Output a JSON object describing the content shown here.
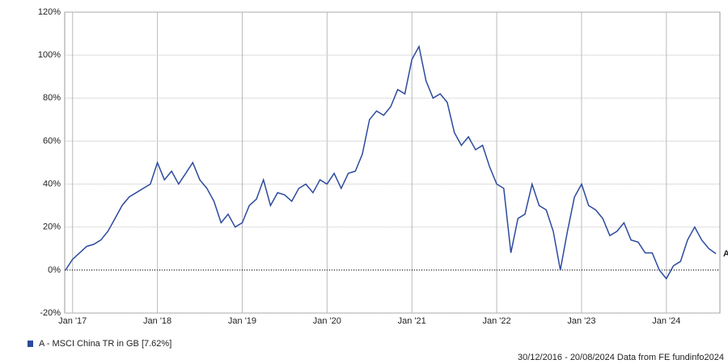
{
  "chart_data": {
    "type": "line",
    "x": [
      "2016-12",
      "2017-01",
      "2017-02",
      "2017-03",
      "2017-04",
      "2017-05",
      "2017-06",
      "2017-07",
      "2017-08",
      "2017-09",
      "2017-10",
      "2017-11",
      "2017-12",
      "2018-01",
      "2018-02",
      "2018-03",
      "2018-04",
      "2018-05",
      "2018-06",
      "2018-07",
      "2018-08",
      "2018-09",
      "2018-10",
      "2018-11",
      "2018-12",
      "2019-01",
      "2019-02",
      "2019-03",
      "2019-04",
      "2019-05",
      "2019-06",
      "2019-07",
      "2019-08",
      "2019-09",
      "2019-10",
      "2019-11",
      "2019-12",
      "2020-01",
      "2020-02",
      "2020-03",
      "2020-04",
      "2020-05",
      "2020-06",
      "2020-07",
      "2020-08",
      "2020-09",
      "2020-10",
      "2020-11",
      "2020-12",
      "2021-01",
      "2021-02",
      "2021-03",
      "2021-04",
      "2021-05",
      "2021-06",
      "2021-07",
      "2021-08",
      "2021-09",
      "2021-10",
      "2021-11",
      "2021-12",
      "2022-01",
      "2022-02",
      "2022-03",
      "2022-04",
      "2022-05",
      "2022-06",
      "2022-07",
      "2022-08",
      "2022-09",
      "2022-10",
      "2022-11",
      "2022-12",
      "2023-01",
      "2023-02",
      "2023-03",
      "2023-04",
      "2023-05",
      "2023-06",
      "2023-07",
      "2023-08",
      "2023-09",
      "2023-10",
      "2023-11",
      "2023-12",
      "2024-01",
      "2024-02",
      "2024-03",
      "2024-04",
      "2024-05",
      "2024-06",
      "2024-07",
      "2024-08"
    ],
    "series": [
      {
        "name": "A - MSCI China TR in GB [7.62%]",
        "color": "#2c4a9e",
        "values": [
          0,
          5,
          8,
          11,
          12,
          14,
          18,
          24,
          30,
          34,
          36,
          38,
          40,
          50,
          42,
          46,
          40,
          45,
          50,
          42,
          38,
          32,
          22,
          26,
          20,
          22,
          30,
          33,
          42,
          30,
          36,
          35,
          32,
          38,
          40,
          36,
          42,
          40,
          45,
          38,
          45,
          46,
          54,
          70,
          74,
          72,
          76,
          84,
          82,
          98,
          104,
          88,
          80,
          82,
          78,
          64,
          58,
          62,
          56,
          58,
          48,
          40,
          38,
          8,
          24,
          26,
          40,
          30,
          28,
          18,
          0,
          18,
          34,
          40,
          30,
          28,
          24,
          16,
          18,
          22,
          14,
          13,
          8,
          8,
          0,
          -4,
          2,
          4,
          14,
          20,
          14,
          10,
          7.62
        ]
      }
    ],
    "end_label": "A",
    "xlim": [
      "2016-12",
      "2024-08"
    ],
    "xticks": [
      {
        "value": "2017-01",
        "label": "Jan '17"
      },
      {
        "value": "2018-01",
        "label": "Jan '18"
      },
      {
        "value": "2019-01",
        "label": "Jan '19"
      },
      {
        "value": "2020-01",
        "label": "Jan '20"
      },
      {
        "value": "2021-01",
        "label": "Jan '21"
      },
      {
        "value": "2022-01",
        "label": "Jan '22"
      },
      {
        "value": "2023-01",
        "label": "Jan '23"
      },
      {
        "value": "2024-01",
        "label": "Jan '24"
      }
    ],
    "ylim": [
      -20,
      120
    ],
    "yticks": [
      {
        "value": -20,
        "label": "-20%"
      },
      {
        "value": 0,
        "label": "0%"
      },
      {
        "value": 20,
        "label": "20%"
      },
      {
        "value": 40,
        "label": "40%"
      },
      {
        "value": 60,
        "label": "60%"
      },
      {
        "value": 80,
        "label": "80%"
      },
      {
        "value": 100,
        "label": "100%"
      },
      {
        "value": 120,
        "label": "120%"
      }
    ],
    "grid": true,
    "zero_line": true,
    "footer": "30/12/2016 - 20/08/2024 Data from FE fundinfo2024"
  }
}
